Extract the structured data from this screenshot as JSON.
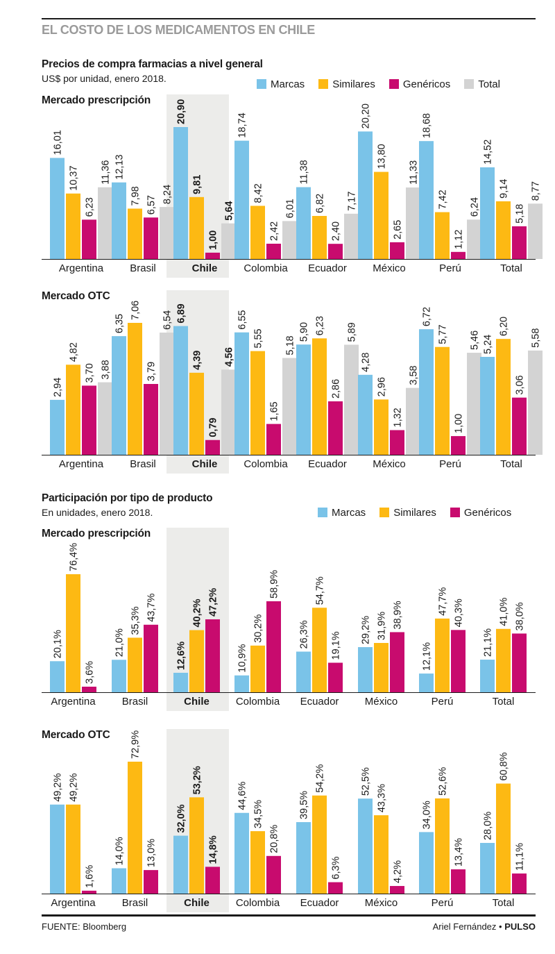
{
  "header": {
    "title": "EL COSTO DE LOS MEDICAMENTOS EN CHILE"
  },
  "colors": {
    "marcas": "#7ac3e8",
    "similares": "#fdb913",
    "genericos": "#c80b6e",
    "total": "#d3d3d3",
    "highlight_bg": "#ececea"
  },
  "section1": {
    "title": "Precios de compra farmacias a nivel general",
    "subtitle": "US$ por unidad, enero 2018.",
    "legend": [
      "Marcas",
      "Similares",
      "Genéricos",
      "Total"
    ]
  },
  "section2": {
    "title": "Participación por tipo de producto",
    "subtitle": "En unidades, enero 2018.",
    "legend": [
      "Marcas",
      "Similares",
      "Genéricos"
    ]
  },
  "chart_data": [
    {
      "type": "bar",
      "title": "Mercado prescripción",
      "categories": [
        "Argentina",
        "Brasil",
        "Chile",
        "Colombia",
        "Ecuador",
        "México",
        "Perú",
        "Total"
      ],
      "highlight": "Chile",
      "series": [
        {
          "name": "Marcas",
          "values": [
            16.01,
            12.13,
            20.9,
            18.74,
            11.38,
            20.2,
            18.68,
            14.52
          ],
          "labels": [
            "16,01",
            "12,13",
            "20,90",
            "18,74",
            "11,38",
            "20,20",
            "18,68",
            "14,52"
          ]
        },
        {
          "name": "Similares",
          "values": [
            10.37,
            7.98,
            9.81,
            8.42,
            6.82,
            13.8,
            7.42,
            9.14
          ],
          "labels": [
            "10,37",
            "7,98",
            "9,81",
            "8,42",
            "6,82",
            "13,80",
            "7,42",
            "9,14"
          ]
        },
        {
          "name": "Genéricos",
          "values": [
            6.23,
            6.57,
            1.0,
            2.42,
            2.4,
            2.65,
            1.12,
            5.18
          ],
          "labels": [
            "6,23",
            "6,57",
            "1,00",
            "2,42",
            "2,40",
            "2,65",
            "1,12",
            "5,18"
          ]
        },
        {
          "name": "Total",
          "values": [
            11.36,
            8.24,
            5.64,
            6.01,
            7.17,
            11.33,
            6.24,
            8.77
          ],
          "labels": [
            "11,36",
            "8,24",
            "5,64",
            "6,01",
            "7,17",
            "11,33",
            "6,24",
            "8,77"
          ]
        }
      ]
    },
    {
      "type": "bar",
      "title": "Mercado OTC",
      "categories": [
        "Argentina",
        "Brasil",
        "Chile",
        "Colombia",
        "Ecuador",
        "México",
        "Perú",
        "Total"
      ],
      "highlight": "Chile",
      "series": [
        {
          "name": "Marcas",
          "values": [
            2.94,
            6.35,
            6.89,
            6.55,
            5.9,
            4.28,
            6.72,
            5.24
          ],
          "labels": [
            "2,94",
            "6,35",
            "6,89",
            "6,55",
            "5,90",
            "4,28",
            "6,72",
            "5,24"
          ]
        },
        {
          "name": "Similares",
          "values": [
            4.82,
            7.06,
            4.39,
            5.55,
            6.23,
            2.96,
            5.77,
            6.2
          ],
          "labels": [
            "4,82",
            "7,06",
            "4,39",
            "5,55",
            "6,23",
            "2,96",
            "5,77",
            "6,20"
          ]
        },
        {
          "name": "Genéricos",
          "values": [
            3.7,
            3.79,
            0.79,
            1.65,
            2.86,
            1.32,
            1.0,
            3.06
          ],
          "labels": [
            "3,70",
            "3,79",
            "0,79",
            "1,65",
            "2,86",
            "1,32",
            "1,00",
            "3,06"
          ]
        },
        {
          "name": "Total",
          "values": [
            3.88,
            6.54,
            4.56,
            5.18,
            5.89,
            3.58,
            5.46,
            5.58
          ],
          "labels": [
            "3,88",
            "6,54",
            "4,56",
            "5,18",
            "5,89",
            "3,58",
            "5,46",
            "5,58"
          ]
        }
      ]
    },
    {
      "type": "bar",
      "title": "Mercado prescripción",
      "categories": [
        "Argentina",
        "Brasil",
        "Chile",
        "Colombia",
        "Ecuador",
        "México",
        "Perú",
        "Total"
      ],
      "highlight": "Chile",
      "series": [
        {
          "name": "Marcas",
          "values": [
            20.1,
            21.0,
            12.6,
            10.9,
            26.3,
            29.2,
            12.1,
            21.1
          ],
          "labels": [
            "20,1%",
            "21,0%",
            "12,6%",
            "10,9%",
            "26,3%",
            "29,2%",
            "12,1%",
            "21,1%"
          ]
        },
        {
          "name": "Similares",
          "values": [
            76.4,
            35.3,
            40.2,
            30.2,
            54.7,
            31.9,
            47.7,
            41.0
          ],
          "labels": [
            "76,4%",
            "35,3%",
            "40,2%",
            "30,2%",
            "54,7%",
            "31,9%",
            "47,7%",
            "41,0%"
          ]
        },
        {
          "name": "Genéricos",
          "values": [
            3.6,
            43.7,
            47.2,
            58.9,
            19.1,
            38.9,
            40.3,
            38.0
          ],
          "labels": [
            "3,6%",
            "43,7%",
            "47,2%",
            "58,9%",
            "19,1%",
            "38,9%",
            "40,3%",
            "38,0%"
          ]
        }
      ]
    },
    {
      "type": "bar",
      "title": "Mercado OTC",
      "categories": [
        "Argentina",
        "Brasil",
        "Chile",
        "Colombia",
        "Ecuador",
        "México",
        "Perú",
        "Total"
      ],
      "highlight": "Chile",
      "series": [
        {
          "name": "Marcas",
          "values": [
            49.2,
            14.0,
            32.0,
            44.6,
            39.5,
            52.5,
            34.0,
            28.0
          ],
          "labels": [
            "49,2%",
            "14,0%",
            "32,0%",
            "44,6%",
            "39,5%",
            "52,5%",
            "34,0%",
            "28,0%"
          ]
        },
        {
          "name": "Similares",
          "values": [
            49.2,
            72.9,
            53.2,
            34.5,
            54.2,
            43.3,
            52.6,
            60.8
          ],
          "labels": [
            "49,2%",
            "72,9%",
            "53,2%",
            "34,5%",
            "54,2%",
            "43,3%",
            "52,6%",
            "60,8%"
          ]
        },
        {
          "name": "Genéricos",
          "values": [
            1.6,
            13.0,
            14.8,
            20.8,
            6.3,
            4.2,
            13.4,
            11.1
          ],
          "labels": [
            "1,6%",
            "13,0%",
            "14,8%",
            "20,8%",
            "6,3%",
            "4,2%",
            "13,4%",
            "11,1%"
          ]
        }
      ]
    }
  ],
  "footer": {
    "source": "FUENTE: Bloomberg",
    "author": "Ariel Fernández •",
    "brand": "PULSO"
  }
}
